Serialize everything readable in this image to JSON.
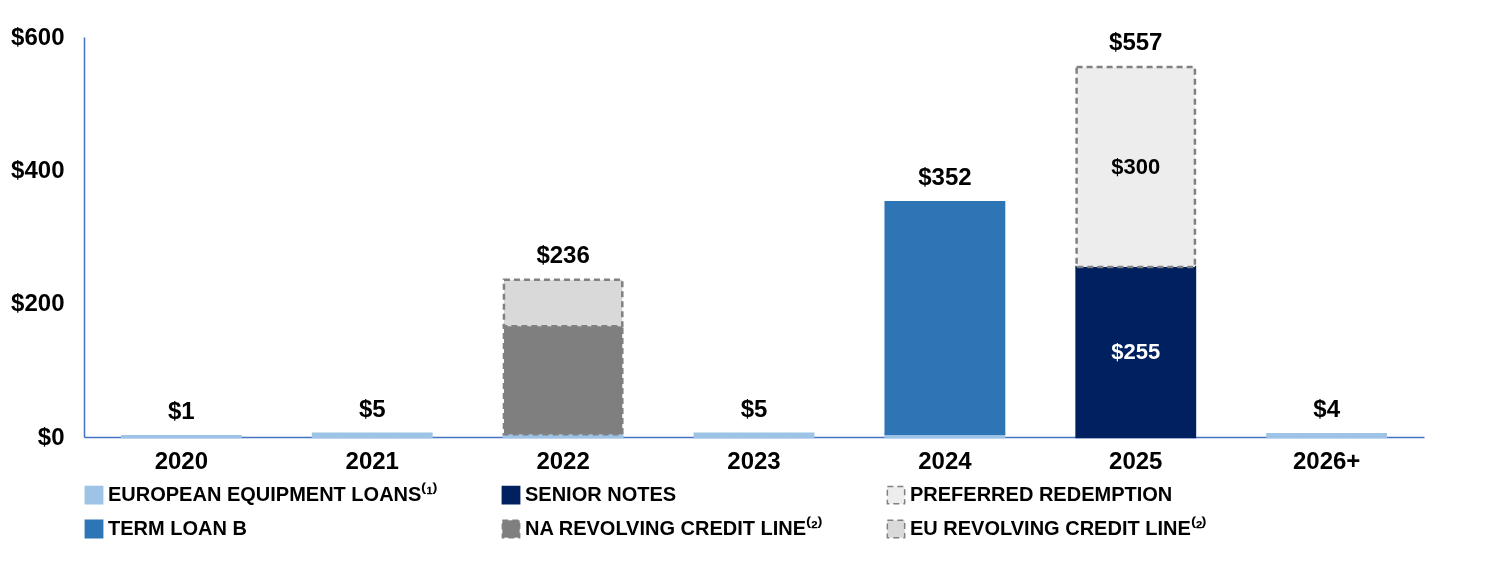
{
  "chart_data": {
    "type": "bar",
    "stacked": true,
    "categories": [
      "2020",
      "2021",
      "2022",
      "2023",
      "2024",
      "2025",
      "2026+"
    ],
    "series": [
      {
        "name": "EUROPEAN EQUIPMENT LOANS⁽¹⁾",
        "color": "#9dc3e6",
        "values": [
          1,
          5,
          4,
          5,
          5,
          null,
          4
        ]
      },
      {
        "name": "SENIOR NOTES",
        "color": "#002060",
        "values": [
          null,
          null,
          null,
          null,
          null,
          255,
          null
        ],
        "value_labels": [
          null,
          null,
          null,
          null,
          null,
          "$255",
          null
        ]
      },
      {
        "name": "PREFERRED REDEMPTION",
        "color": "#ededed",
        "line_style": "dashed",
        "values": [
          null,
          null,
          null,
          null,
          null,
          300,
          null
        ],
        "value_labels": [
          null,
          null,
          null,
          null,
          null,
          "$300",
          null
        ]
      },
      {
        "name": "TERM LOAN B",
        "color": "#2e75b6",
        "values": [
          null,
          null,
          null,
          null,
          347,
          null,
          null
        ]
      },
      {
        "name": "NA REVOLVING CREDIT LINE⁽²⁾",
        "color": "#7f7f7f",
        "line_style": "dashed",
        "values": [
          null,
          null,
          162,
          null,
          null,
          null,
          null
        ]
      },
      {
        "name": "EU REVOLVING CREDIT LINE⁽²⁾",
        "color": "#d9d9d9",
        "line_style": "dashed",
        "values": [
          null,
          null,
          70,
          null,
          null,
          null,
          null
        ]
      }
    ],
    "totals": [
      "$1",
      "$5",
      "$236",
      "$5",
      "$352",
      "$557",
      "$4"
    ],
    "ylim": [
      0,
      600
    ],
    "yticks": [
      {
        "value": 0,
        "label": "$0"
      },
      {
        "value": 200,
        "label": "$200"
      },
      {
        "value": 400,
        "label": "$400"
      },
      {
        "value": 600,
        "label": "$600"
      }
    ],
    "grid": false,
    "legend": "bottom"
  }
}
